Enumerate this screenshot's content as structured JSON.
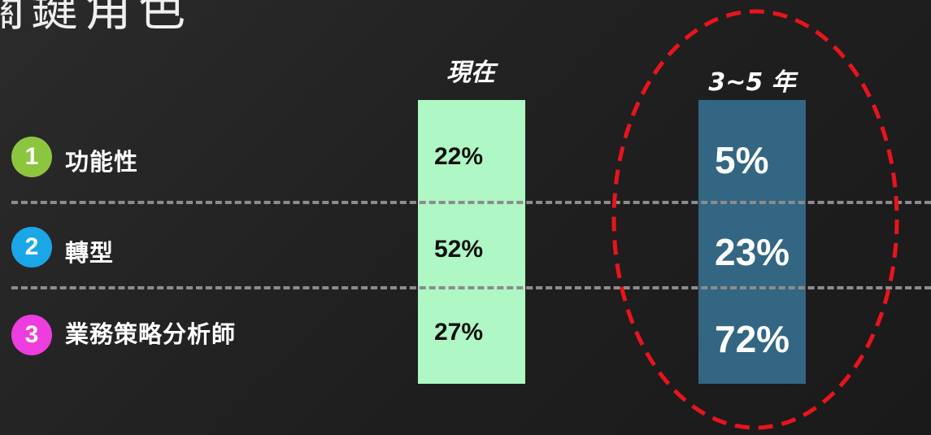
{
  "title": "關鍵角色",
  "columns": {
    "now": "現在",
    "future": "3~5 年"
  },
  "rows": [
    {
      "number": "1",
      "label": "功能性",
      "now": "22%",
      "future": "5%",
      "badge_color": "#8cc63f"
    },
    {
      "number": "2",
      "label": "轉型",
      "now": "52%",
      "future": "23%",
      "badge_color": "#1aa7e8"
    },
    {
      "number": "3",
      "label": "業務策略分析師",
      "now": "27%",
      "future": "72%",
      "badge_color": "#ee3ddf"
    }
  ],
  "colors": {
    "now_bar": "#aff7c4",
    "future_bar": "#336683",
    "highlight_ellipse": "#e8141c",
    "divider": "#8c8c8c"
  }
}
